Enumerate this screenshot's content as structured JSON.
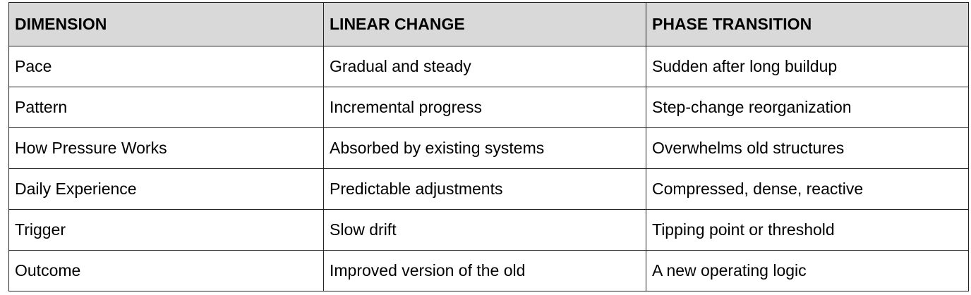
{
  "table": {
    "headers": [
      "DIMENSION",
      "LINEAR CHANGE",
      "PHASE TRANSITION"
    ],
    "header_bg": "#d9d9d9",
    "rows": [
      [
        "Pace",
        "Gradual and steady",
        "Sudden after long buildup"
      ],
      [
        "Pattern",
        "Incremental progress",
        "Step-change reorganization"
      ],
      [
        "How Pressure Works",
        "Absorbed by existing systems",
        "Overwhelms old structures"
      ],
      [
        "Daily Experience",
        "Predictable adjustments",
        "Compressed, dense, reactive"
      ],
      [
        "Trigger",
        "Slow drift",
        "Tipping point or threshold"
      ],
      [
        "Outcome",
        "Improved version of the old",
        "A new operating logic"
      ]
    ]
  }
}
